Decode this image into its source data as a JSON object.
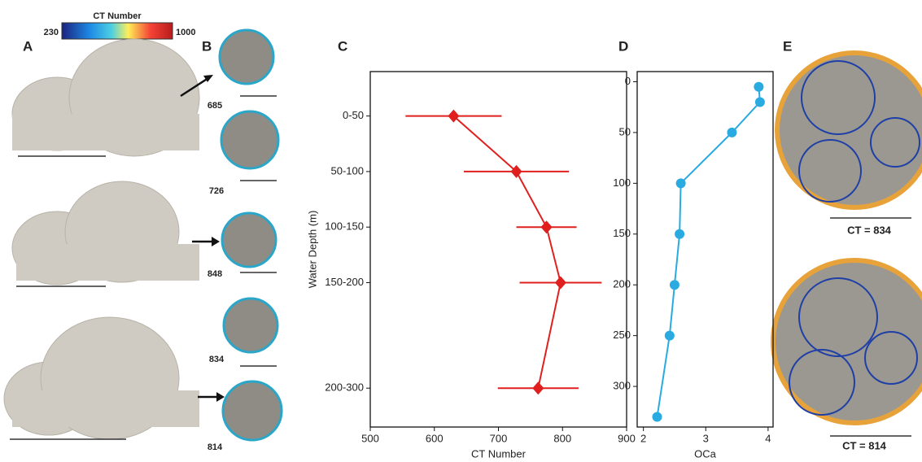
{
  "panels": [
    "A",
    "B",
    "C",
    "D",
    "E"
  ],
  "colorbar": {
    "title": "CT Number",
    "min": 230,
    "max": 1000
  },
  "specimens": [
    685,
    726,
    848,
    834,
    814
  ],
  "captions": [
    "CT = 834",
    "CT = 814"
  ],
  "chart_data": [
    {
      "type": "errorbar",
      "x_label": "CT Number",
      "y_label": "Water Depth (m)",
      "series": [
        {
          "color": "#e0201f",
          "values": [
            630,
            728,
            775,
            797,
            762
          ],
          "y": [
            25,
            75,
            125,
            175,
            270
          ],
          "xerr": [
            75,
            82,
            47,
            64,
            63
          ]
        }
      ],
      "xlim": [
        500,
        900
      ],
      "xticks": [
        500,
        600,
        700,
        800,
        900
      ],
      "ylim": [
        -15,
        305
      ],
      "y_inverted": true,
      "yticks": [
        {
          "value": 25,
          "label": "0-50"
        },
        {
          "value": 75,
          "label": "50-100"
        },
        {
          "value": 125,
          "label": "100-150"
        },
        {
          "value": 175,
          "label": "150-200"
        },
        {
          "value": 270,
          "label": "200-300"
        }
      ]
    },
    {
      "type": "line",
      "x_label": "OCa",
      "series": [
        {
          "color": "#29abe2",
          "values": [
            3.85,
            3.87,
            3.42,
            2.6,
            2.58,
            2.5,
            2.42,
            2.22
          ],
          "y": [
            5,
            20,
            50,
            100,
            150,
            200,
            250,
            330
          ]
        }
      ],
      "xlim": [
        1.9,
        4.08
      ],
      "xticks": [
        2,
        3,
        4
      ],
      "ylim": [
        -10,
        340
      ],
      "y_inverted": true,
      "yticks": [
        0,
        50,
        100,
        150,
        200,
        250,
        300
      ]
    }
  ]
}
